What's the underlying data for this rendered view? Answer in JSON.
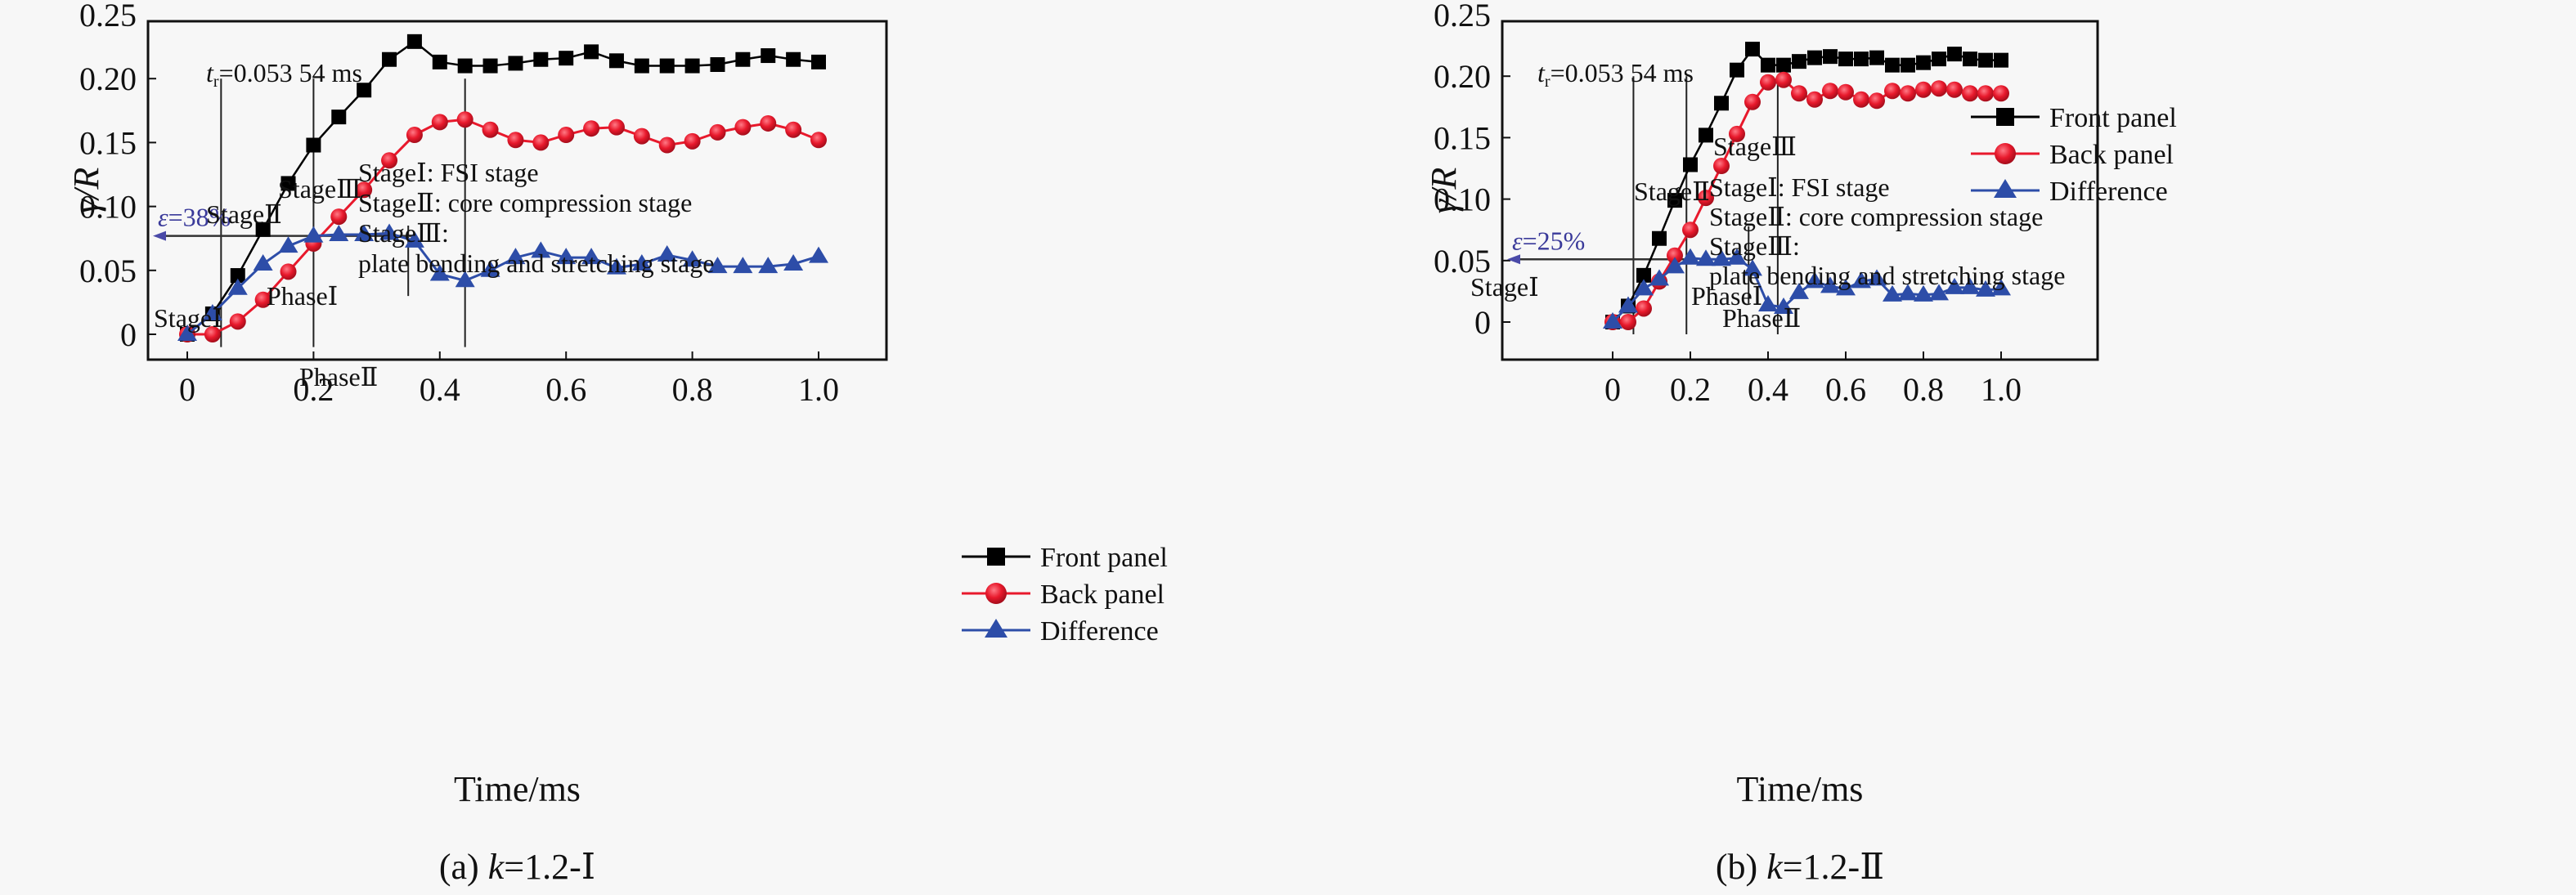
{
  "chart_data": [
    {
      "id": "a",
      "type": "line",
      "caption": {
        "prefix": "(a) ",
        "k": "k",
        "rest": "=1.2-Ⅰ"
      },
      "xlabel": "Time/ms",
      "ylabel": "γ/R",
      "xlim": [
        -0.1,
        1.12
      ],
      "ylim": [
        -0.01,
        0.25
      ],
      "xticks": [
        0,
        0.2,
        0.4,
        0.6,
        0.8,
        1.0
      ],
      "xtick_labels": [
        "0",
        "0.2",
        "0.4",
        "0.6",
        "0.8",
        "1.0"
      ],
      "yticks": [
        0,
        0.05,
        0.1,
        0.15,
        0.2,
        0.25
      ],
      "ytick_labels": [
        "0",
        "0.05",
        "0.10",
        "0.15",
        "0.20",
        "0.25"
      ],
      "grid": false,
      "legend_position": "bottom-right",
      "x": [
        0,
        0.04,
        0.08,
        0.12,
        0.16,
        0.2,
        0.24,
        0.28,
        0.32,
        0.36,
        0.4,
        0.44,
        0.48,
        0.52,
        0.56,
        0.6,
        0.64,
        0.68,
        0.72,
        0.76,
        0.8,
        0.84,
        0.88,
        0.92,
        0.96,
        1.0
      ],
      "series": [
        {
          "name": "Front panel",
          "marker": "square",
          "color": "#000000",
          "values": [
            0,
            0.016,
            0.046,
            0.082,
            0.118,
            0.148,
            0.17,
            0.191,
            0.215,
            0.229,
            0.213,
            0.21,
            0.21,
            0.212,
            0.215,
            0.216,
            0.221,
            0.214,
            0.21,
            0.21,
            0.21,
            0.211,
            0.215,
            0.218,
            0.215,
            0.213
          ]
        },
        {
          "name": "Back panel",
          "marker": "circle",
          "color": "#e8192c",
          "values": [
            0,
            0,
            0.01,
            0.027,
            0.049,
            0.071,
            0.092,
            0.113,
            0.136,
            0.156,
            0.166,
            0.168,
            0.16,
            0.152,
            0.15,
            0.156,
            0.161,
            0.162,
            0.155,
            0.148,
            0.151,
            0.158,
            0.162,
            0.165,
            0.16,
            0.152
          ]
        },
        {
          "name": "Difference",
          "marker": "triangle",
          "color": "#2d4da8",
          "values": [
            0,
            0.016,
            0.036,
            0.055,
            0.069,
            0.077,
            0.078,
            0.078,
            0.079,
            0.073,
            0.047,
            0.042,
            0.05,
            0.06,
            0.065,
            0.06,
            0.06,
            0.052,
            0.055,
            0.062,
            0.058,
            0.053,
            0.053,
            0.053,
            0.055,
            0.061
          ]
        }
      ],
      "vlines": [
        {
          "x": 0.05354,
          "y_from": -0.01,
          "y_to": 0.2
        },
        {
          "x": 0.2,
          "y_from": -0.01,
          "y_to": 0.2
        },
        {
          "x": 0.44,
          "y_from": -0.01,
          "y_to": 0.2
        },
        {
          "x": 0.35,
          "y_from": 0.03,
          "y_to": 0.085
        }
      ],
      "epsilon_line": {
        "y": 0.077,
        "x_to": 0.36,
        "label_symbol": "ε",
        "label_value": "=38%"
      },
      "annotations": {
        "tr_label": {
          "symbol": "t",
          "sub": "r",
          "value": "=0.053 54 ms"
        },
        "stage1": "StageⅠ",
        "stage2": "StageⅡ",
        "stage3": "StageⅢ",
        "phase1": "PhaseⅠ",
        "phase2": "PhaseⅡ",
        "notes": [
          "StageⅠ: FSI stage",
          "StageⅡ: core compression stage",
          "StageⅢ:",
          "plate bending and stretching stage"
        ]
      }
    },
    {
      "id": "b",
      "type": "line",
      "caption": {
        "prefix": "(b) ",
        "k": "k",
        "rest": "=1.2-Ⅱ"
      },
      "xlabel": "Time/ms",
      "ylabel": "γ/R",
      "xlim": [
        -0.1,
        1.12
      ],
      "ylim": [
        -0.01,
        0.25
      ],
      "xticks": [
        0,
        0.2,
        0.4,
        0.6,
        0.8,
        1.0
      ],
      "xtick_labels": [
        "0",
        "0.2",
        "0.4",
        "0.6",
        "0.8",
        "1.0"
      ],
      "yticks": [
        0,
        0.05,
        0.1,
        0.15,
        0.2,
        0.25
      ],
      "ytick_labels": [
        "0",
        "0.05",
        "0.10",
        "0.15",
        "0.20",
        "0.25"
      ],
      "grid": false,
      "legend_position": "top-right",
      "x": [
        0,
        0.04,
        0.08,
        0.12,
        0.16,
        0.2,
        0.24,
        0.28,
        0.32,
        0.36,
        0.4,
        0.44,
        0.48,
        0.52,
        0.56,
        0.6,
        0.64,
        0.68,
        0.72,
        0.76,
        0.8,
        0.84,
        0.88,
        0.92,
        0.96,
        1.0
      ],
      "series": [
        {
          "name": "Front panel",
          "marker": "square",
          "color": "#000000",
          "values": [
            0,
            0.013,
            0.038,
            0.068,
            0.099,
            0.128,
            0.152,
            0.178,
            0.205,
            0.222,
            0.209,
            0.209,
            0.212,
            0.215,
            0.216,
            0.214,
            0.214,
            0.215,
            0.209,
            0.209,
            0.211,
            0.214,
            0.218,
            0.214,
            0.213,
            0.213
          ]
        },
        {
          "name": "Back panel",
          "marker": "circle",
          "color": "#e8192c",
          "values": [
            0,
            0,
            0.011,
            0.033,
            0.054,
            0.075,
            0.101,
            0.127,
            0.153,
            0.179,
            0.195,
            0.197,
            0.186,
            0.181,
            0.188,
            0.187,
            0.181,
            0.18,
            0.188,
            0.186,
            0.189,
            0.19,
            0.189,
            0.186,
            0.186,
            0.186
          ]
        },
        {
          "name": "Difference",
          "marker": "triangle",
          "color": "#2d4da8",
          "values": [
            0,
            0.013,
            0.027,
            0.035,
            0.045,
            0.052,
            0.051,
            0.051,
            0.052,
            0.043,
            0.014,
            0.012,
            0.024,
            0.033,
            0.029,
            0.027,
            0.033,
            0.035,
            0.022,
            0.023,
            0.022,
            0.023,
            0.028,
            0.028,
            0.026,
            0.027
          ]
        }
      ],
      "vlines": [
        {
          "x": 0.05354,
          "y_from": -0.01,
          "y_to": 0.2
        },
        {
          "x": 0.19,
          "y_from": -0.01,
          "y_to": 0.2
        },
        {
          "x": 0.425,
          "y_from": -0.01,
          "y_to": 0.2
        },
        {
          "x": 0.35,
          "y_from": 0.015,
          "y_to": 0.078
        }
      ],
      "epsilon_line": {
        "y": 0.051,
        "x_to": 0.185,
        "label_symbol": "ε",
        "label_value": "=25%"
      },
      "annotations": {
        "tr_label": {
          "symbol": "t",
          "sub": "r",
          "value": "=0.053 54 ms"
        },
        "stage1": "StageⅠ",
        "stage2": "StageⅡ",
        "stage3": "StageⅢ",
        "phase1": "PhaseⅠ",
        "phase2": "PhaseⅡ",
        "notes": [
          "StageⅠ: FSI stage",
          "StageⅡ: core compression stage",
          "StageⅢ:",
          "plate bending and stretching stage"
        ]
      }
    }
  ]
}
